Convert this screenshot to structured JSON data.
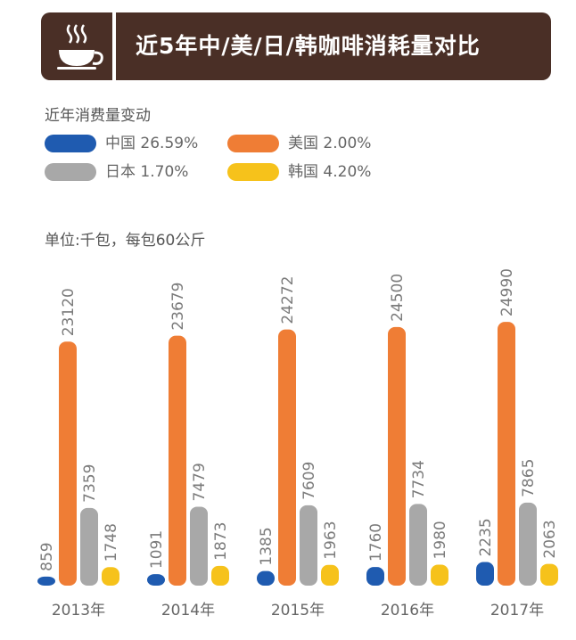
{
  "header": {
    "title": "近5年中/美/日/韩咖啡消耗量对比",
    "icon": "coffee-cup-icon"
  },
  "legend": {
    "title": "近年消费量变动",
    "items": [
      {
        "label": "中国 26.59%",
        "color": "#1f5bb0"
      },
      {
        "label": "美国 2.00%",
        "color": "#ef7d35"
      },
      {
        "label": "日本 1.70%",
        "color": "#a8a8a8"
      },
      {
        "label": "韩国 4.20%",
        "color": "#f6c21b"
      }
    ]
  },
  "unit_label": "单位:千包，每包60公斤",
  "chart_data": {
    "type": "bar",
    "categories": [
      "2013年",
      "2014年",
      "2015年",
      "2016年",
      "2017年"
    ],
    "series": [
      {
        "name": "中国",
        "color": "#1f5bb0",
        "values": [
          859,
          1091,
          1385,
          1760,
          2235
        ]
      },
      {
        "name": "美国",
        "color": "#ef7d35",
        "values": [
          23120,
          23679,
          24272,
          24500,
          24990
        ]
      },
      {
        "name": "日本",
        "color": "#a8a8a8",
        "values": [
          7359,
          7479,
          7609,
          7734,
          7865
        ]
      },
      {
        "name": "韩国",
        "color": "#f6c21b",
        "values": [
          1748,
          1873,
          1963,
          1980,
          2063
        ]
      }
    ],
    "data_labels": [
      [
        "859",
        "23120",
        "7359",
        "1748"
      ],
      [
        "1091",
        "23679",
        "7479",
        "1873"
      ],
      [
        "1385",
        "24272",
        "7609",
        "1963"
      ],
      [
        "1760",
        "24500",
        "7734",
        "1980"
      ],
      [
        "2235",
        "24990",
        "7865",
        "2063"
      ]
    ]
  }
}
